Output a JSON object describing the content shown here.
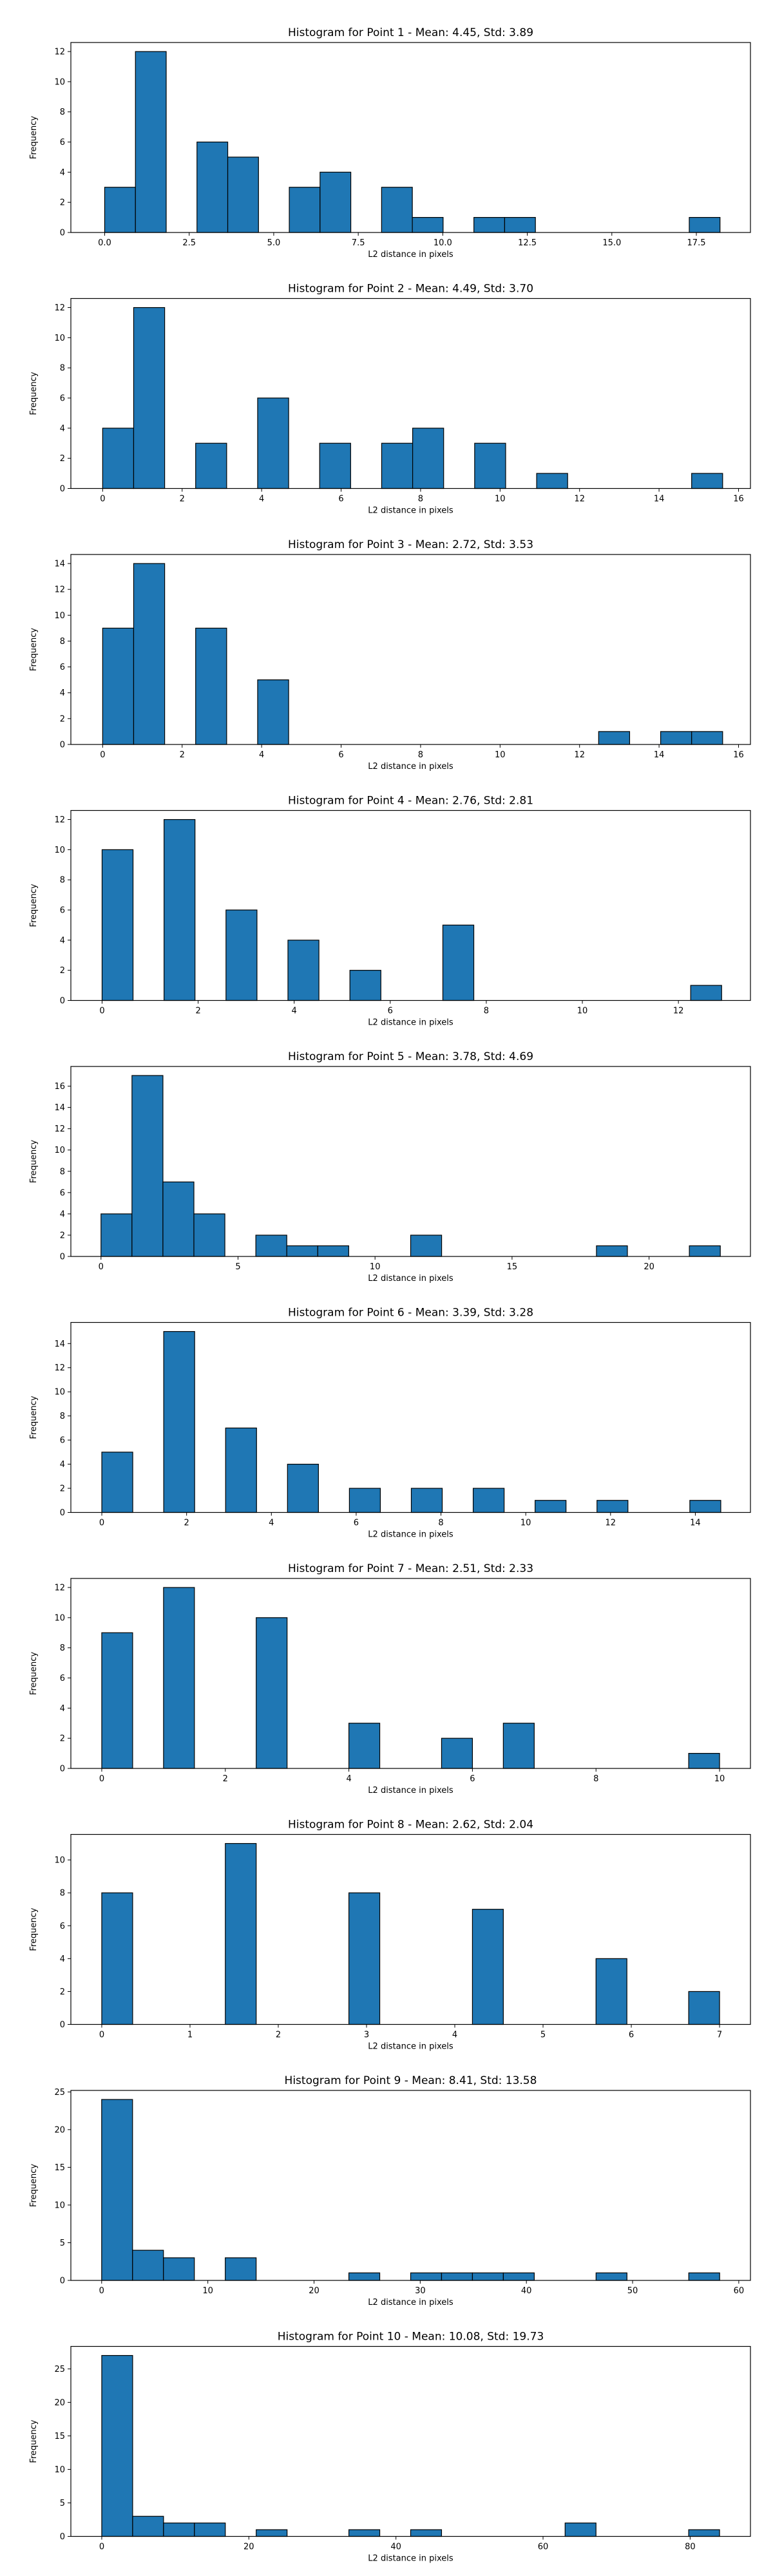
{
  "chart_data": [
    {
      "type": "bar",
      "title": "Histogram for Point 1 - Mean: 4.45, Std: 3.89",
      "xlabel": "L2 distance in pixels",
      "ylabel": "Frequency",
      "xlim": [
        -1.0,
        19.1
      ],
      "ylim": [
        0,
        12.6
      ],
      "xticks": [
        0,
        2.5,
        5,
        7.5,
        10,
        12.5,
        15,
        17.5
      ],
      "xtick_labels": [
        "0.0",
        "2.5",
        "5.0",
        "7.5",
        "10.0",
        "12.5",
        "15.0",
        "17.5"
      ],
      "yticks": [
        0,
        2,
        4,
        6,
        8,
        10,
        12
      ],
      "bin_edges": [
        0.0,
        0.91,
        1.82,
        2.73,
        3.64,
        4.55,
        5.46,
        6.37,
        7.28,
        8.19,
        9.1,
        10.01,
        10.92,
        11.83,
        12.74,
        13.65,
        14.56,
        15.47,
        16.38,
        17.29,
        18.2
      ],
      "counts": [
        3,
        12,
        0,
        6,
        5,
        0,
        3,
        4,
        0,
        3,
        1,
        0,
        1,
        1,
        0,
        0,
        0,
        0,
        0,
        1
      ]
    },
    {
      "type": "bar",
      "title": "Histogram for Point 2 - Mean: 4.49, Std: 3.70",
      "xlabel": "L2 distance in pixels",
      "ylabel": "Frequency",
      "xlim": [
        -0.8,
        16.3
      ],
      "ylim": [
        0,
        12.6
      ],
      "xticks": [
        0,
        2,
        4,
        6,
        8,
        10,
        12,
        14,
        16
      ],
      "xtick_labels": [
        "0",
        "2",
        "4",
        "6",
        "8",
        "10",
        "12",
        "14",
        "16"
      ],
      "yticks": [
        0,
        2,
        4,
        6,
        8,
        10,
        12
      ],
      "bin_edges": [
        0.0,
        0.78,
        1.56,
        2.34,
        3.12,
        3.9,
        4.68,
        5.46,
        6.24,
        7.02,
        7.8,
        8.58,
        9.36,
        10.14,
        10.92,
        11.7,
        12.48,
        13.26,
        14.04,
        14.82,
        15.6
      ],
      "counts": [
        4,
        12,
        0,
        3,
        0,
        6,
        0,
        3,
        0,
        3,
        4,
        0,
        3,
        0,
        1,
        0,
        0,
        0,
        0,
        1
      ]
    },
    {
      "type": "bar",
      "title": "Histogram for Point 3 - Mean: 2.72, Std: 3.53",
      "xlabel": "L2 distance in pixels",
      "ylabel": "Frequency",
      "xlim": [
        -0.8,
        16.3
      ],
      "ylim": [
        0,
        14.7
      ],
      "xticks": [
        0,
        2,
        4,
        6,
        8,
        10,
        12,
        14,
        16
      ],
      "xtick_labels": [
        "0",
        "2",
        "4",
        "6",
        "8",
        "10",
        "12",
        "14",
        "16"
      ],
      "yticks": [
        0,
        2,
        4,
        6,
        8,
        10,
        12,
        14
      ],
      "bin_edges": [
        0.0,
        0.78,
        1.56,
        2.34,
        3.12,
        3.9,
        4.68,
        5.46,
        6.24,
        7.02,
        7.8,
        8.58,
        9.36,
        10.14,
        10.92,
        11.7,
        12.48,
        13.26,
        14.04,
        14.82,
        15.6
      ],
      "counts": [
        9,
        14,
        0,
        9,
        0,
        5,
        0,
        0,
        0,
        0,
        0,
        0,
        0,
        0,
        0,
        0,
        1,
        0,
        1,
        1
      ]
    },
    {
      "type": "bar",
      "title": "Histogram for Point 4 - Mean: 2.76, Std: 2.81",
      "xlabel": "L2 distance in pixels",
      "ylabel": "Frequency",
      "xlim": [
        -0.65,
        13.5
      ],
      "ylim": [
        0,
        12.6
      ],
      "xticks": [
        0,
        2,
        4,
        6,
        8,
        10,
        12
      ],
      "xtick_labels": [
        "0",
        "2",
        "4",
        "6",
        "8",
        "10",
        "12"
      ],
      "yticks": [
        0,
        2,
        4,
        6,
        8,
        10,
        12
      ],
      "bin_edges": [
        0.0,
        0.645,
        1.29,
        1.935,
        2.58,
        3.225,
        3.87,
        4.515,
        5.16,
        5.805,
        6.45,
        7.095,
        7.74,
        8.385,
        9.03,
        9.675,
        10.32,
        10.965,
        11.61,
        12.255,
        12.9
      ],
      "counts": [
        10,
        0,
        12,
        0,
        6,
        0,
        4,
        0,
        2,
        0,
        0,
        5,
        0,
        0,
        0,
        0,
        0,
        0,
        0,
        1
      ]
    },
    {
      "type": "bar",
      "title": "Histogram for Point 5 - Mean: 3.78, Std: 4.69",
      "xlabel": "L2 distance in pixels",
      "ylabel": "Frequency",
      "xlim": [
        -1.1,
        23.7
      ],
      "ylim": [
        0,
        17.85
      ],
      "xticks": [
        0,
        5,
        10,
        15,
        20
      ],
      "xtick_labels": [
        "0",
        "5",
        "10",
        "15",
        "20"
      ],
      "yticks": [
        0,
        2,
        4,
        6,
        8,
        10,
        12,
        14,
        16
      ],
      "bin_edges": [
        0.0,
        1.13,
        2.26,
        3.39,
        4.52,
        5.65,
        6.78,
        7.91,
        9.04,
        10.17,
        11.3,
        12.43,
        13.56,
        14.69,
        15.82,
        16.95,
        18.08,
        19.21,
        20.34,
        21.47,
        22.6
      ],
      "counts": [
        4,
        17,
        7,
        4,
        0,
        2,
        1,
        1,
        0,
        0,
        2,
        0,
        0,
        0,
        0,
        0,
        1,
        0,
        0,
        1
      ]
    },
    {
      "type": "bar",
      "title": "Histogram for Point 6 - Mean: 3.39, Std: 3.28",
      "xlabel": "L2 distance in pixels",
      "ylabel": "Frequency",
      "xlim": [
        -0.73,
        15.3
      ],
      "ylim": [
        0,
        15.75
      ],
      "xticks": [
        0,
        2,
        4,
        6,
        8,
        10,
        12,
        14
      ],
      "xtick_labels": [
        "0",
        "2",
        "4",
        "6",
        "8",
        "10",
        "12",
        "14"
      ],
      "yticks": [
        0,
        2,
        4,
        6,
        8,
        10,
        12,
        14
      ],
      "bin_edges": [
        0.0,
        0.73,
        1.46,
        2.19,
        2.92,
        3.65,
        4.38,
        5.11,
        5.84,
        6.57,
        7.3,
        8.03,
        8.76,
        9.49,
        10.22,
        10.95,
        11.68,
        12.41,
        13.14,
        13.87,
        14.6
      ],
      "counts": [
        5,
        0,
        15,
        0,
        7,
        0,
        4,
        0,
        2,
        0,
        2,
        0,
        2,
        0,
        1,
        0,
        1,
        0,
        0,
        1
      ]
    },
    {
      "type": "bar",
      "title": "Histogram for Point 7 - Mean: 2.51, Std: 2.33",
      "xlabel": "L2 distance in pixels",
      "ylabel": "Frequency",
      "xlim": [
        -0.5,
        10.5
      ],
      "ylim": [
        0,
        12.6
      ],
      "xticks": [
        0,
        2,
        4,
        6,
        8,
        10
      ],
      "xtick_labels": [
        "0",
        "2",
        "4",
        "6",
        "8",
        "10"
      ],
      "yticks": [
        0,
        2,
        4,
        6,
        8,
        10,
        12
      ],
      "bin_edges": [
        0.0,
        0.5,
        1.0,
        1.5,
        2.0,
        2.5,
        3.0,
        3.5,
        4.0,
        4.5,
        5.0,
        5.5,
        6.0,
        6.5,
        7.0,
        7.5,
        8.0,
        8.5,
        9.0,
        9.5,
        10.0
      ],
      "counts": [
        9,
        0,
        12,
        0,
        0,
        10,
        0,
        0,
        3,
        0,
        0,
        2,
        0,
        3,
        0,
        0,
        0,
        0,
        0,
        1
      ]
    },
    {
      "type": "bar",
      "title": "Histogram for Point 8 - Mean: 2.62, Std: 2.04",
      "xlabel": "L2 distance in pixels",
      "ylabel": "Frequency",
      "xlim": [
        -0.35,
        7.35
      ],
      "ylim": [
        0,
        11.55
      ],
      "xticks": [
        0,
        1,
        2,
        3,
        4,
        5,
        6,
        7
      ],
      "xtick_labels": [
        "0",
        "1",
        "2",
        "3",
        "4",
        "5",
        "6",
        "7"
      ],
      "yticks": [
        0,
        2,
        4,
        6,
        8,
        10
      ],
      "bin_edges": [
        0.0,
        0.35,
        0.7,
        1.05,
        1.4,
        1.75,
        2.1,
        2.45,
        2.8,
        3.15,
        3.5,
        3.85,
        4.2,
        4.55,
        4.9,
        5.25,
        5.6,
        5.95,
        6.3,
        6.65,
        7.0
      ],
      "counts": [
        8,
        0,
        0,
        0,
        11,
        0,
        0,
        0,
        8,
        0,
        0,
        0,
        7,
        0,
        0,
        0,
        4,
        0,
        0,
        2
      ]
    },
    {
      "type": "bar",
      "title": "Histogram for Point 9 - Mean: 8.41, Std: 13.58",
      "xlabel": "L2 distance in pixels",
      "ylabel": "Frequency",
      "xlim": [
        -2.9,
        61.1
      ],
      "ylim": [
        0,
        25.2
      ],
      "xticks": [
        0,
        10,
        20,
        30,
        40,
        50,
        60
      ],
      "xtick_labels": [
        "0",
        "10",
        "20",
        "30",
        "40",
        "50",
        "60"
      ],
      "yticks": [
        0,
        5,
        10,
        15,
        20,
        25
      ],
      "bin_edges": [
        0.0,
        2.91,
        5.82,
        8.73,
        11.64,
        14.55,
        17.46,
        20.37,
        23.28,
        26.19,
        29.1,
        32.01,
        34.92,
        37.83,
        40.74,
        43.65,
        46.56,
        49.47,
        52.38,
        55.29,
        58.2
      ],
      "counts": [
        24,
        4,
        3,
        0,
        3,
        0,
        0,
        0,
        1,
        0,
        1,
        1,
        1,
        1,
        0,
        0,
        1,
        0,
        0,
        1
      ]
    },
    {
      "type": "bar",
      "title": "Histogram for Point 10 - Mean: 10.08, Std: 19.73",
      "xlabel": "L2 distance in pixels",
      "ylabel": "Frequency",
      "xlim": [
        -4.2,
        88.2
      ],
      "ylim": [
        0,
        28.35
      ],
      "xticks": [
        0,
        20,
        40,
        60,
        80
      ],
      "xtick_labels": [
        "0",
        "20",
        "40",
        "60",
        "80"
      ],
      "yticks": [
        0,
        5,
        10,
        15,
        20,
        25
      ],
      "bin_edges": [
        0.0,
        4.2,
        8.4,
        12.6,
        16.8,
        21.0,
        25.2,
        29.4,
        33.6,
        37.8,
        42.0,
        46.2,
        50.4,
        54.6,
        58.8,
        63.0,
        67.2,
        71.4,
        75.6,
        79.8,
        84.0
      ],
      "counts": [
        27,
        3,
        2,
        2,
        0,
        1,
        0,
        0,
        1,
        0,
        1,
        0,
        0,
        0,
        0,
        2,
        0,
        0,
        0,
        1
      ]
    }
  ],
  "colors": {
    "bar_fill": "#1f77b4",
    "bar_edge": "#000000",
    "axes": "#000000",
    "background": "#ffffff"
  }
}
